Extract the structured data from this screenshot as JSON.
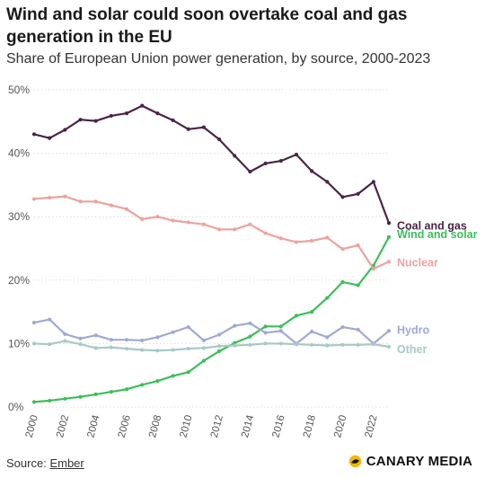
{
  "title": "Wind and solar could soon overtake coal and gas generation in the EU",
  "subtitle": "Share of European Union power generation, by source, 2000-2023",
  "footer": {
    "source_label": "Source:",
    "source_name": "Ember",
    "brand": "CANARY MEDIA"
  },
  "colors": {
    "coal_and_gas": "#4a2545",
    "wind_and_solar": "#3bbf5a",
    "nuclear": "#eba39f",
    "hydro": "#a1a9d2",
    "other": "#a8c9c4",
    "grid": "#dcdcdc",
    "brand_accent": "#f2b705"
  },
  "chart_data": {
    "type": "line",
    "x": [
      2000,
      2001,
      2002,
      2003,
      2004,
      2005,
      2006,
      2007,
      2008,
      2009,
      2010,
      2011,
      2012,
      2013,
      2014,
      2015,
      2016,
      2017,
      2018,
      2019,
      2020,
      2021,
      2022,
      2023
    ],
    "x_ticks": [
      "2000",
      "2002",
      "2004",
      "2006",
      "2008",
      "2010",
      "2012",
      "2014",
      "2016",
      "2018",
      "2020",
      "2022"
    ],
    "y_ticks": [
      "0%",
      "10%",
      "20%",
      "30%",
      "40%",
      "50%"
    ],
    "ylim": [
      0,
      50
    ],
    "grid": true,
    "legend": "direct labels at line ends",
    "series": [
      {
        "name": "Coal and gas",
        "key": "coal_and_gas",
        "values": [
          43.0,
          42.4,
          43.7,
          45.3,
          45.1,
          45.9,
          46.3,
          47.5,
          46.3,
          45.2,
          43.8,
          44.1,
          42.2,
          39.6,
          37.1,
          38.4,
          38.8,
          39.8,
          37.2,
          35.5,
          33.1,
          33.6,
          35.5,
          29.0
        ]
      },
      {
        "name": "Wind and solar",
        "key": "wind_and_solar",
        "values": [
          0.8,
          1.0,
          1.3,
          1.6,
          2.0,
          2.4,
          2.8,
          3.5,
          4.1,
          4.9,
          5.5,
          7.3,
          8.8,
          10.1,
          11.1,
          12.7,
          12.7,
          14.4,
          15.0,
          17.2,
          19.7,
          19.2,
          22.3,
          26.8
        ]
      },
      {
        "name": "Nuclear",
        "key": "nuclear",
        "values": [
          32.8,
          33.0,
          33.2,
          32.4,
          32.4,
          31.8,
          31.2,
          29.6,
          30.0,
          29.4,
          29.1,
          28.8,
          28.0,
          28.0,
          28.8,
          27.4,
          26.6,
          26.0,
          26.2,
          26.7,
          24.9,
          25.5,
          21.8,
          22.9
        ]
      },
      {
        "name": "Hydro",
        "key": "hydro",
        "values": [
          13.3,
          13.8,
          11.5,
          10.8,
          11.3,
          10.6,
          10.6,
          10.5,
          11.0,
          11.8,
          12.6,
          10.5,
          11.4,
          12.8,
          13.2,
          11.7,
          12.0,
          10.0,
          11.9,
          11.0,
          12.6,
          12.2,
          10.0,
          12.0
        ]
      },
      {
        "name": "Other",
        "key": "other",
        "values": [
          10.0,
          9.9,
          10.4,
          9.9,
          9.3,
          9.4,
          9.2,
          9.0,
          8.9,
          9.0,
          9.2,
          9.3,
          9.6,
          9.7,
          9.8,
          10.0,
          10.0,
          9.9,
          9.8,
          9.7,
          9.8,
          9.8,
          9.9,
          9.5
        ]
      }
    ]
  }
}
